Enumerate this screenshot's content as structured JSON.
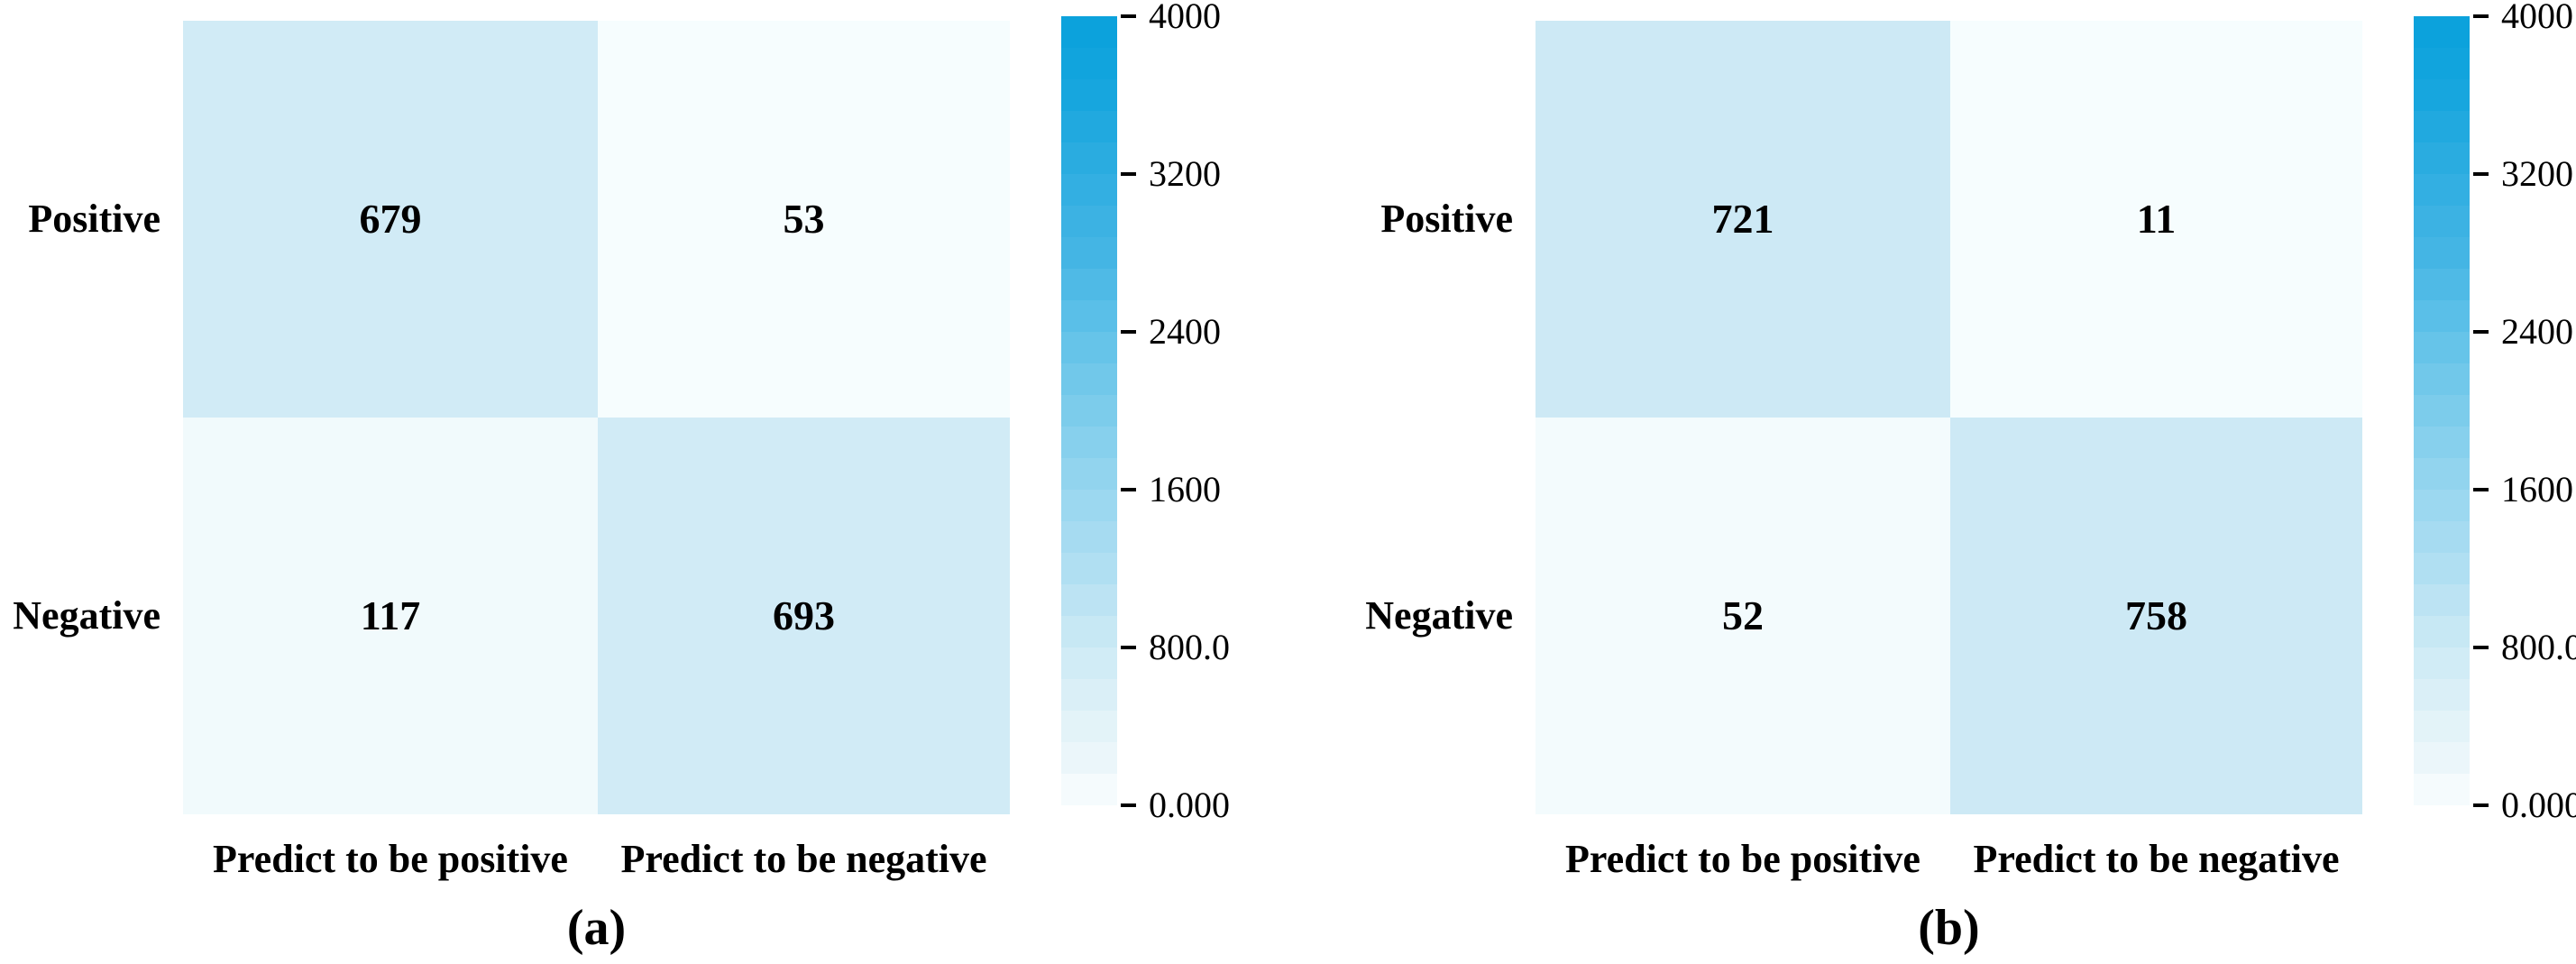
{
  "figure": {
    "background": "#ffffff",
    "panels": [
      {
        "caption": "(a)",
        "row_labels": [
          "Positive",
          "Negative"
        ],
        "col_labels": [
          "Predict to be positive",
          "Predict to be negative"
        ],
        "cells": [
          [
            {
              "value": "679",
              "color": "#d1ebf6"
            },
            {
              "value": "53",
              "color": "#f6fdfe"
            }
          ],
          [
            {
              "value": "117",
              "color": "#f1fafc"
            },
            {
              "value": "693",
              "color": "#d1ebf6"
            }
          ]
        ]
      },
      {
        "caption": "(b)",
        "row_labels": [
          "Positive",
          "Negative"
        ],
        "col_labels": [
          "Predict to be positive",
          "Predict to be negative"
        ],
        "cells": [
          [
            {
              "value": "721",
              "color": "#cde9f5"
            },
            {
              "value": "11",
              "color": "#f6fdfe"
            }
          ],
          [
            {
              "value": "52",
              "color": "#f3fbfd"
            },
            {
              "value": "758",
              "color": "#cde9f5"
            }
          ]
        ]
      }
    ],
    "colorbar": {
      "vmin": 0,
      "vmax": 4000,
      "steps": 25,
      "ticks": [
        "4000",
        "3200",
        "2400",
        "1600",
        "800.0",
        "0.000"
      ],
      "tick_values": [
        4000,
        3200,
        2400,
        1600,
        800,
        0
      ],
      "stops": [
        {
          "v": 0,
          "c": "#fbfeff"
        },
        {
          "v": 200,
          "c": "#edf7fa"
        },
        {
          "v": 400,
          "c": "#e3f3f8"
        },
        {
          "v": 800,
          "c": "#cdeaf5"
        },
        {
          "v": 1200,
          "c": "#b0dff2"
        },
        {
          "v": 1600,
          "c": "#97d6ef"
        },
        {
          "v": 2000,
          "c": "#7ccceb"
        },
        {
          "v": 2400,
          "c": "#60c2e9"
        },
        {
          "v": 2800,
          "c": "#44b5e4"
        },
        {
          "v": 3200,
          "c": "#2fade1"
        },
        {
          "v": 3600,
          "c": "#17a6de"
        },
        {
          "v": 4000,
          "c": "#09a1dc"
        }
      ]
    }
  },
  "chart_data": [
    {
      "type": "heatmap",
      "title": "(a)",
      "rows": [
        "Positive",
        "Negative"
      ],
      "cols": [
        "Predict to be positive",
        "Predict to be negative"
      ],
      "values": [
        [
          679,
          53
        ],
        [
          117,
          693
        ]
      ],
      "colorbar_range": [
        0,
        4000
      ],
      "colorbar_ticks": [
        0,
        800,
        1600,
        2400,
        3200,
        4000
      ],
      "colormap": "white-to-blue"
    },
    {
      "type": "heatmap",
      "title": "(b)",
      "rows": [
        "Positive",
        "Negative"
      ],
      "cols": [
        "Predict to be positive",
        "Predict to be negative"
      ],
      "values": [
        [
          721,
          11
        ],
        [
          52,
          758
        ]
      ],
      "colorbar_range": [
        0,
        4000
      ],
      "colorbar_ticks": [
        0,
        800,
        1600,
        2400,
        3200,
        4000
      ],
      "colormap": "white-to-blue"
    }
  ]
}
